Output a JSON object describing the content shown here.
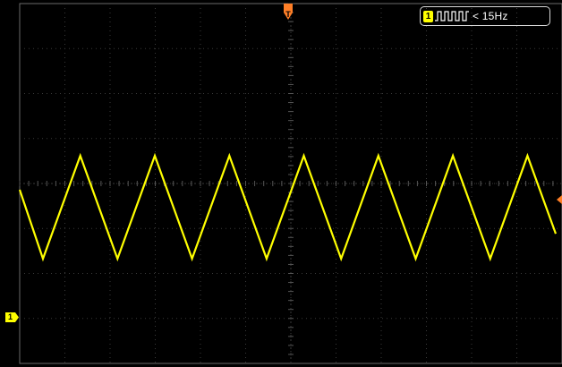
{
  "channel": {
    "number": "1",
    "color": "#ffff00",
    "waveform": "triangle",
    "cycles_visible": 7.25
  },
  "frequency_display": {
    "channel_label": "1",
    "coupling_icon": "pulse-train-icon",
    "text": "< 15Hz"
  },
  "trigger": {
    "marker_label": "T",
    "color": "#ff7f27"
  },
  "grid": {
    "h_divisions": 12,
    "v_divisions": 8,
    "grid_color": "#3a3a3a",
    "border_color": "#6a6a6a"
  }
}
